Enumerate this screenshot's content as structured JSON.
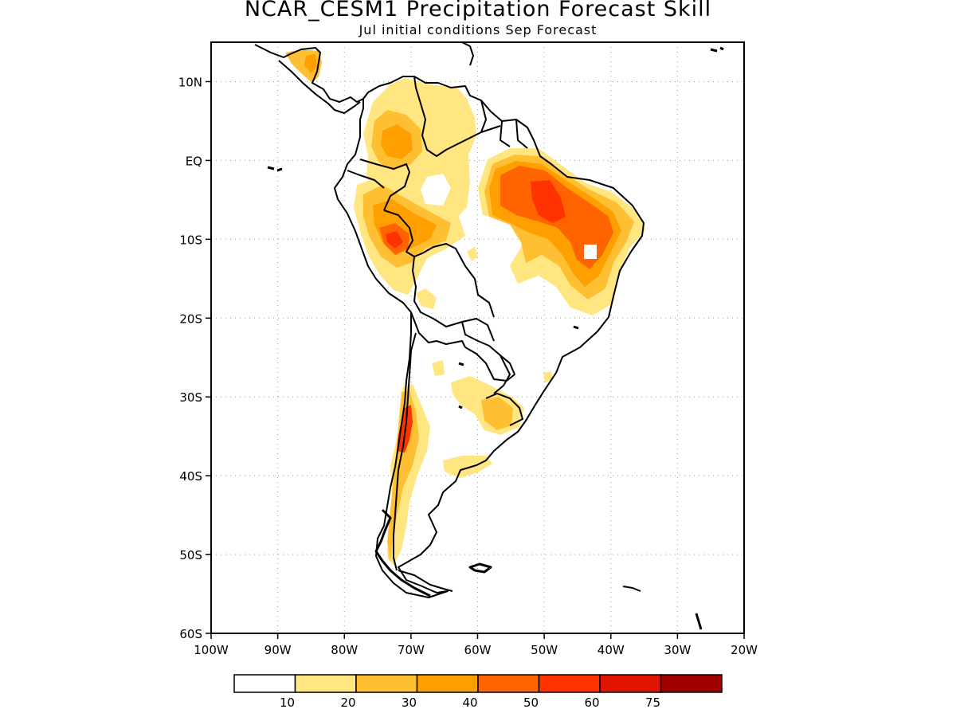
{
  "title": "NCAR_CESM1 Precipitation Forecast Skill",
  "subtitle": "Jul initial conditions  Sep Forecast",
  "map": {
    "region": "South America",
    "lon_range": [
      -100,
      -20
    ],
    "lat_range": [
      -60,
      15
    ],
    "lat_ticks": [
      "10N",
      "EQ",
      "10S",
      "20S",
      "30S",
      "40S",
      "50S",
      "60S"
    ],
    "lon_ticks": [
      "100W",
      "90W",
      "80W",
      "70W",
      "60W",
      "50W",
      "40W",
      "30W",
      "20W"
    ],
    "grid": "dotted",
    "land_outline_color": "#000000"
  },
  "colorbar": {
    "labels": [
      "10",
      "20",
      "30",
      "40",
      "50",
      "60",
      "75"
    ],
    "colors": [
      "#ffffff",
      "#ffe680",
      "#ffbf33",
      "#ff9f00",
      "#ff6400",
      "#ff3200",
      "#e01400",
      "#a00000"
    ]
  }
}
